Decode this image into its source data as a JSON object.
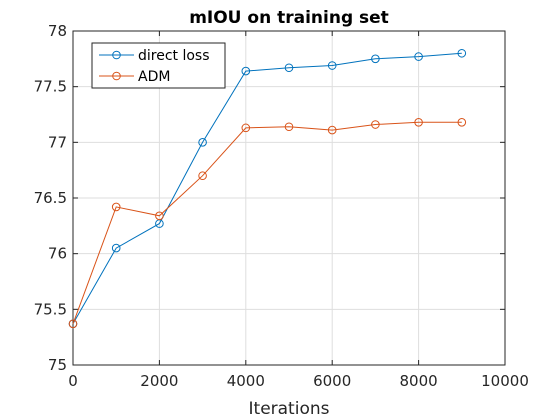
{
  "chart_data": {
    "type": "line",
    "title": "mIOU on training set",
    "xlabel": "Iterations",
    "ylabel": "",
    "xlim": [
      0,
      10000
    ],
    "ylim": [
      75,
      78
    ],
    "xticks": [
      0,
      2000,
      4000,
      6000,
      8000,
      10000
    ],
    "xtick_labels": [
      "0",
      "2000",
      "4000",
      "6000",
      "8000",
      "10000"
    ],
    "yticks": [
      75,
      75.5,
      76,
      76.5,
      77,
      77.5,
      78
    ],
    "ytick_labels": [
      "75",
      "75.5",
      "76",
      "76.5",
      "77",
      "77.5",
      "78"
    ],
    "grid": true,
    "legend_position": "top-left",
    "x": [
      0,
      1000,
      2000,
      3000,
      4000,
      5000,
      6000,
      7000,
      8000,
      9000
    ],
    "series": [
      {
        "name": "direct loss",
        "color": "#0072BD",
        "marker": "circle",
        "values": [
          75.37,
          76.05,
          76.27,
          77.0,
          77.64,
          77.67,
          77.69,
          77.75,
          77.77,
          77.8
        ]
      },
      {
        "name": "ADM",
        "color": "#D95319",
        "marker": "circle",
        "values": [
          75.37,
          76.42,
          76.34,
          76.7,
          77.13,
          77.14,
          77.11,
          77.16,
          77.18,
          77.18
        ]
      }
    ]
  }
}
